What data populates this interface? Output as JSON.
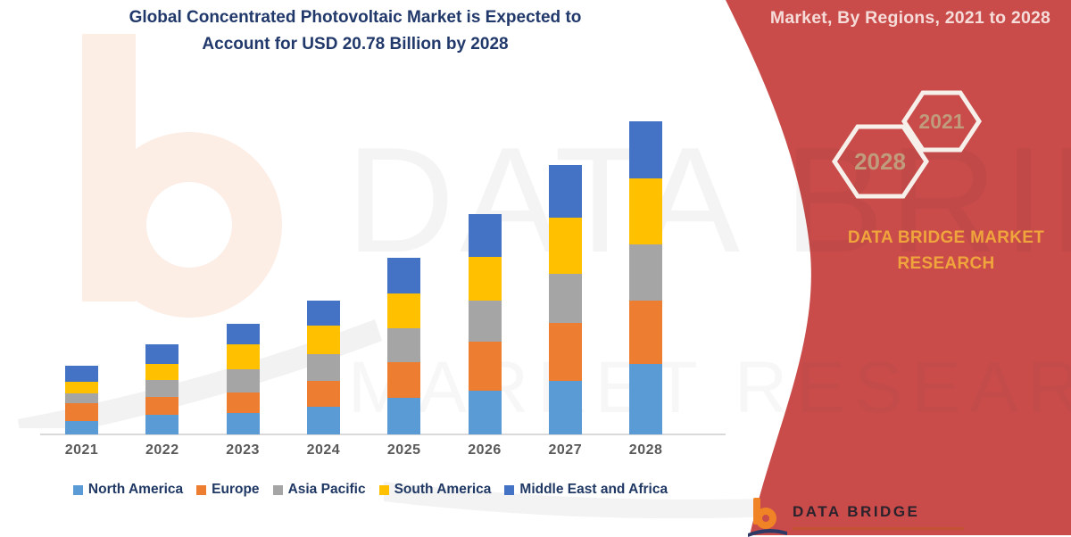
{
  "header": {
    "title_line1": "Global Concentrated Photovoltaic Market is Expected to",
    "title_line2": "Account for USD 20.78 Billion by 2028",
    "side_title": "Market, By Regions, 2021 to 2028"
  },
  "chart_data": {
    "type": "bar",
    "stacked": true,
    "title": "Global Concentrated Photovoltaic Market is Expected to Account for USD 20.78 Billion by 2028",
    "unit": "USD Billion",
    "categories": [
      "2021",
      "2022",
      "2023",
      "2024",
      "2025",
      "2026",
      "2027",
      "2028"
    ],
    "series": [
      {
        "name": "North America",
        "color": "#5B9BD5",
        "values": [
          0.9,
          1.3,
          1.4,
          1.85,
          2.45,
          2.9,
          3.55,
          4.65
        ]
      },
      {
        "name": "Europe",
        "color": "#ED7D31",
        "values": [
          1.2,
          1.2,
          1.4,
          1.7,
          2.35,
          3.25,
          3.85,
          4.25
        ]
      },
      {
        "name": "Asia Pacific",
        "color": "#A5A5A5",
        "values": [
          0.65,
          1.1,
          1.5,
          1.8,
          2.25,
          2.75,
          3.25,
          3.7
        ]
      },
      {
        "name": "South America",
        "color": "#FFC000",
        "values": [
          0.75,
          1.1,
          1.65,
          1.85,
          2.3,
          2.85,
          3.75,
          4.4
        ]
      },
      {
        "name": "Middle East and Africa",
        "color": "#4472C4",
        "values": [
          1.05,
          1.3,
          1.4,
          1.7,
          2.35,
          2.85,
          3.45,
          3.78
        ]
      }
    ],
    "totals": [
      4.55,
      6.0,
      7.35,
      8.9,
      11.7,
      14.6,
      17.85,
      20.78
    ],
    "legend_position": "bottom",
    "grid": false,
    "xlabel": "",
    "ylabel": ""
  },
  "ribbon": {
    "hexagons": [
      {
        "label": "2028"
      },
      {
        "label": "2021"
      }
    ],
    "brand_line1": "DATA BRIDGE MARKET",
    "brand_line2": "RESEARCH"
  },
  "footer_logo": {
    "brand": "DATA BRIDGE"
  },
  "watermark": {
    "line1": "DATA BRIDGE",
    "line2": "MARKET RESEARCH"
  },
  "colors": {
    "ribbon_red": "#C94C4A",
    "title_navy": "#21386B",
    "brand_gold": "#F0A43C",
    "hex_number_tan": "#C09B7C",
    "axis_gray": "#D9D9D9",
    "label_gray": "#595959",
    "legend_navy": "#1F3864"
  }
}
